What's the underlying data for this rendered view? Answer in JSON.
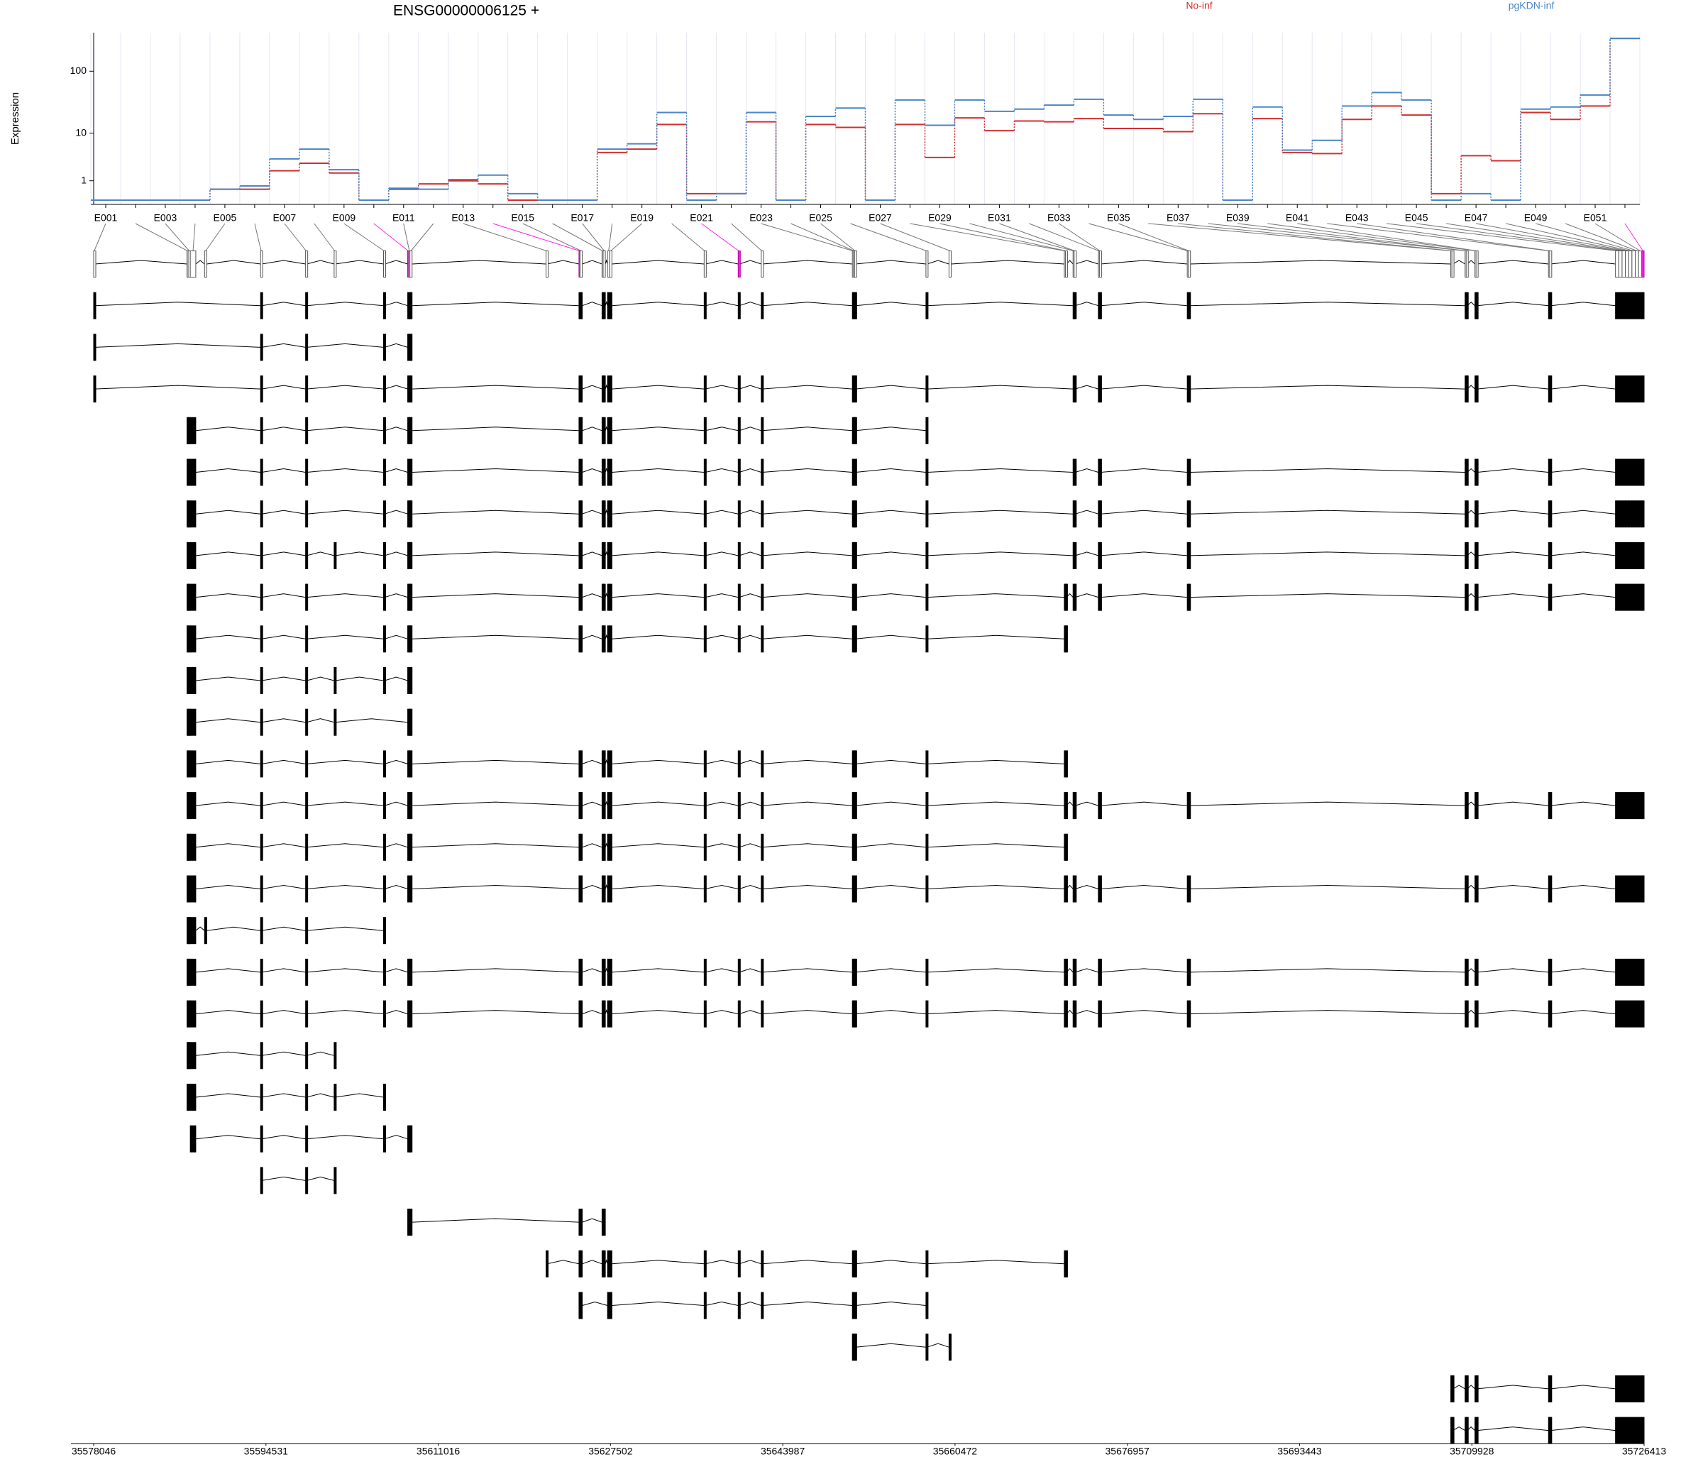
{
  "chart_data": {
    "type": "step",
    "title": "ENSG00000006125 +",
    "y_label": "Expression",
    "yscale": "log1p",
    "ylim": [
      0,
      400
    ],
    "yticks": [
      1,
      10,
      100
    ],
    "grid": true,
    "categories": [
      "E001",
      null,
      "E003",
      null,
      "E005",
      null,
      "E007",
      null,
      "E009",
      null,
      "E011",
      null,
      "E013",
      null,
      "E015",
      null,
      "E017",
      null,
      "E019",
      null,
      "E021",
      null,
      "E023",
      null,
      "E025",
      null,
      "E027",
      null,
      "E029",
      null,
      "E031",
      null,
      "E033",
      null,
      "E035",
      null,
      "E037",
      null,
      "E039",
      null,
      "E041",
      null,
      "E043",
      null,
      "E045",
      null,
      "E047",
      null,
      "E049",
      null,
      "E051",
      null
    ],
    "series": [
      {
        "name": "No-inf",
        "color": "#d03030",
        "values": [
          0,
          0,
          0,
          0,
          0.48,
          0.48,
          1.86,
          2.75,
          1.64,
          0,
          0.48,
          0.79,
          1.0,
          0.79,
          0,
          0,
          0,
          4.5,
          5.2,
          14,
          0.26,
          0.26,
          15.5,
          0,
          14,
          12.5,
          0,
          14,
          3.6,
          18,
          11,
          16,
          15.5,
          17.5,
          12,
          12,
          10.6,
          21,
          0,
          17.5,
          4.5,
          4.3,
          17,
          28,
          20,
          0.26,
          3.9,
          3.1,
          22,
          17,
          28,
          325
        ]
      },
      {
        "name": "pgKDN-inf",
        "color": "#4a86c5",
        "values": [
          0,
          0,
          0,
          0,
          0.48,
          0.66,
          3.38,
          5.2,
          1.97,
          0,
          0.53,
          0.48,
          1.09,
          1.45,
          0.26,
          0,
          0,
          5.2,
          6.5,
          22,
          0,
          0.26,
          22,
          0,
          19,
          26,
          0,
          35,
          13.6,
          35,
          23,
          25,
          29,
          36,
          20,
          17,
          19,
          36,
          0,
          27,
          5,
          7.5,
          28,
          46,
          35,
          0,
          0.26,
          0,
          25,
          27,
          42,
          325
        ]
      }
    ]
  },
  "gene_model": {
    "xlim": [
      35578046,
      35726413
    ],
    "xticks": [
      35578046,
      35594531,
      35611016,
      35627502,
      35643987,
      35660472,
      35676957,
      35693443,
      35709928,
      35726413
    ],
    "highlight": [
      9,
      13,
      20,
      51
    ],
    "highlight_color": "#ff22ee",
    "exons": [
      [
        35578046,
        35578151
      ],
      [
        35586977,
        35587082
      ],
      [
        35587082,
        35587292
      ],
      [
        35587292,
        35587818
      ],
      [
        35588658,
        35588868
      ],
      [
        35594017,
        35594122
      ],
      [
        35598325,
        35598430
      ],
      [
        35601056,
        35601161
      ],
      [
        35605784,
        35605890
      ],
      [
        35608096,
        35608201
      ],
      [
        35608201,
        35608306
      ],
      [
        35608306,
        35608516
      ],
      [
        35621335,
        35621440
      ],
      [
        35624487,
        35624592
      ],
      [
        35624592,
        35624802
      ],
      [
        35626693,
        35626798
      ],
      [
        35626798,
        35627009
      ],
      [
        35627219,
        35627429
      ],
      [
        35627429,
        35627639
      ],
      [
        35636465,
        35636570
      ],
      [
        35639722,
        35639827
      ],
      [
        35641929,
        35642034
      ],
      [
        35650649,
        35650754
      ],
      [
        35650754,
        35650860
      ],
      [
        35650860,
        35650965
      ],
      [
        35657689,
        35657794
      ],
      [
        35659896,
        35660106
      ],
      [
        35670928,
        35671033
      ],
      [
        35671033,
        35671138
      ],
      [
        35671768,
        35671873
      ],
      [
        35671873,
        35671979
      ],
      [
        35674185,
        35674290
      ],
      [
        35674290,
        35674395
      ],
      [
        35682696,
        35682801
      ],
      [
        35682801,
        35682906
      ],
      [
        35707913,
        35708018
      ],
      [
        35708018,
        35708123
      ],
      [
        35709279,
        35709384
      ],
      [
        35709384,
        35709489
      ],
      [
        35710224,
        35710329
      ],
      [
        35710329,
        35710434
      ],
      [
        35717264,
        35717369
      ],
      [
        35717369,
        35717474
      ],
      [
        35723673,
        35723989
      ],
      [
        35723989,
        35724304
      ],
      [
        35724304,
        35724619
      ],
      [
        35724619,
        35724934
      ],
      [
        35724934,
        35725249
      ],
      [
        35725249,
        35725564
      ],
      [
        35725564,
        35725879
      ],
      [
        35725879,
        35726194
      ],
      [
        35726194,
        35726413
      ]
    ],
    "transcripts": [
      [
        0,
        5,
        6,
        8,
        9,
        10,
        11,
        13,
        14,
        15,
        16,
        17,
        18,
        19,
        20,
        21,
        22,
        23,
        24,
        25,
        29,
        30,
        31,
        32,
        33,
        34,
        37,
        38,
        39,
        40,
        41,
        42,
        43,
        44,
        45,
        46,
        47,
        48,
        49,
        50,
        51
      ],
      [
        0,
        5,
        6,
        8,
        9,
        10,
        11
      ],
      [
        0,
        5,
        6,
        8,
        9,
        10,
        11,
        13,
        14,
        15,
        16,
        17,
        18,
        19,
        20,
        21,
        22,
        23,
        24,
        25,
        29,
        30,
        31,
        32,
        33,
        34,
        37,
        38,
        39,
        40,
        41,
        42,
        43,
        44,
        45,
        46,
        47,
        48,
        49,
        50,
        51
      ],
      [
        1,
        2,
        3,
        5,
        6,
        8,
        9,
        10,
        11,
        13,
        14,
        15,
        16,
        17,
        18,
        19,
        20,
        21,
        22,
        23,
        24,
        25
      ],
      [
        1,
        2,
        3,
        5,
        6,
        8,
        9,
        10,
        11,
        13,
        14,
        15,
        16,
        17,
        18,
        19,
        20,
        21,
        22,
        23,
        24,
        25,
        29,
        30,
        31,
        32,
        33,
        34,
        37,
        38,
        39,
        40,
        41,
        42,
        43,
        44,
        45,
        46,
        47,
        48,
        49,
        50,
        51
      ],
      [
        1,
        2,
        3,
        5,
        6,
        8,
        9,
        10,
        11,
        13,
        14,
        15,
        16,
        17,
        18,
        19,
        20,
        21,
        22,
        23,
        24,
        25,
        29,
        30,
        31,
        32,
        33,
        34,
        37,
        38,
        39,
        40,
        41,
        42,
        43,
        44,
        45,
        46,
        47,
        48,
        49,
        50,
        51
      ],
      [
        1,
        2,
        3,
        5,
        6,
        7,
        8,
        9,
        10,
        11,
        13,
        14,
        15,
        16,
        17,
        18,
        19,
        20,
        21,
        22,
        23,
        24,
        25,
        29,
        30,
        31,
        32,
        33,
        34,
        37,
        38,
        39,
        40,
        41,
        42,
        43,
        44,
        45,
        46,
        47,
        48,
        49,
        50,
        51
      ],
      [
        1,
        2,
        3,
        5,
        6,
        8,
        9,
        10,
        11,
        13,
        14,
        15,
        16,
        17,
        18,
        19,
        20,
        21,
        22,
        23,
        24,
        25,
        27,
        28,
        29,
        30,
        31,
        32,
        33,
        34,
        37,
        38,
        39,
        40,
        41,
        42,
        43,
        44,
        45,
        46,
        47,
        48,
        49,
        50,
        51
      ],
      [
        1,
        2,
        3,
        5,
        6,
        8,
        9,
        10,
        11,
        13,
        14,
        15,
        16,
        17,
        18,
        19,
        20,
        21,
        22,
        23,
        24,
        25,
        27,
        28
      ],
      [
        1,
        2,
        3,
        5,
        6,
        7,
        8,
        9,
        10,
        11
      ],
      [
        1,
        2,
        3,
        5,
        6,
        7,
        9,
        10,
        11
      ],
      [
        1,
        2,
        3,
        5,
        6,
        8,
        9,
        10,
        11,
        13,
        14,
        15,
        16,
        17,
        18,
        19,
        20,
        21,
        22,
        23,
        24,
        25,
        27,
        28
      ],
      [
        1,
        2,
        3,
        5,
        6,
        8,
        9,
        10,
        11,
        13,
        14,
        15,
        16,
        17,
        18,
        19,
        20,
        21,
        22,
        23,
        24,
        25,
        27,
        28,
        29,
        30,
        31,
        32,
        33,
        34,
        37,
        38,
        39,
        40,
        41,
        42,
        43,
        44,
        45,
        46,
        47,
        48,
        49,
        50,
        51
      ],
      [
        1,
        2,
        3,
        5,
        6,
        8,
        9,
        10,
        11,
        13,
        14,
        15,
        16,
        17,
        18,
        19,
        20,
        21,
        22,
        23,
        24,
        25,
        27,
        28
      ],
      [
        1,
        2,
        3,
        5,
        6,
        8,
        9,
        10,
        11,
        13,
        14,
        15,
        16,
        17,
        18,
        19,
        20,
        21,
        22,
        23,
        24,
        25,
        27,
        28,
        29,
        30,
        31,
        32,
        33,
        34,
        37,
        38,
        39,
        40,
        41,
        42,
        43,
        44,
        45,
        46,
        47,
        48,
        49,
        50,
        51
      ],
      [
        1,
        2,
        3,
        4,
        5,
        6,
        8
      ],
      [
        1,
        2,
        3,
        5,
        6,
        8,
        9,
        10,
        11,
        13,
        14,
        15,
        16,
        17,
        18,
        19,
        20,
        21,
        22,
        23,
        24,
        25,
        27,
        28,
        29,
        30,
        31,
        32,
        33,
        34,
        37,
        38,
        39,
        40,
        41,
        42,
        43,
        44,
        45,
        46,
        47,
        48,
        49,
        50,
        51
      ],
      [
        1,
        2,
        3,
        5,
        6,
        8,
        9,
        10,
        11,
        13,
        14,
        15,
        16,
        17,
        18,
        19,
        20,
        21,
        22,
        23,
        24,
        25,
        27,
        28,
        29,
        30,
        31,
        32,
        33,
        34,
        37,
        38,
        39,
        40,
        41,
        42,
        43,
        44,
        45,
        46,
        47,
        48,
        49,
        50,
        51
      ],
      [
        1,
        2,
        3,
        5,
        6,
        7
      ],
      [
        1,
        2,
        3,
        5,
        6,
        7,
        8
      ],
      [
        3,
        5,
        6,
        8,
        9,
        10,
        11
      ],
      [
        5,
        6,
        7
      ],
      [
        9,
        10,
        11,
        13,
        14,
        15,
        16
      ],
      [
        12,
        13,
        14,
        15,
        16,
        17,
        18,
        19,
        20,
        21,
        22,
        23,
        24,
        25,
        27,
        28
      ],
      [
        13,
        14,
        17,
        18,
        19,
        20,
        21,
        22,
        23,
        24,
        25
      ],
      [
        22,
        23,
        24,
        25,
        26
      ],
      [
        35,
        36,
        37,
        38,
        39,
        40,
        41,
        42,
        43,
        44,
        45,
        46,
        47,
        48,
        49,
        50,
        51
      ],
      [
        35,
        36,
        37,
        38,
        39,
        40,
        41,
        42,
        43,
        44,
        45,
        46,
        47,
        48,
        49,
        50,
        51
      ]
    ]
  }
}
